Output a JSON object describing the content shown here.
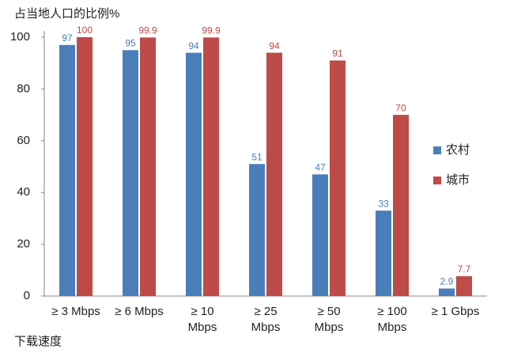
{
  "chart_data": {
    "type": "bar",
    "title": "占当地人口的比例%",
    "x_label": "下载速度",
    "categories": [
      "≥ 3 Mbps",
      "≥ 6 Mbps",
      "≥ 10\nMbps",
      "≥ 25\nMbps",
      "≥ 50\nMbps",
      "≥ 100\nMbps",
      "≥ 1 Gbps"
    ],
    "series": [
      {
        "name": "农村",
        "color": "#4a7ebb",
        "values": [
          97,
          95,
          94,
          51,
          47,
          33,
          2.9
        ]
      },
      {
        "name": "城市",
        "color": "#be4b48",
        "values": [
          100,
          99.9,
          99.9,
          94,
          91,
          70,
          7.7
        ]
      }
    ],
    "ylim": [
      0,
      100
    ],
    "yticks": [
      0,
      20,
      40,
      60,
      80,
      100
    ],
    "grid": false,
    "legend": "right"
  }
}
